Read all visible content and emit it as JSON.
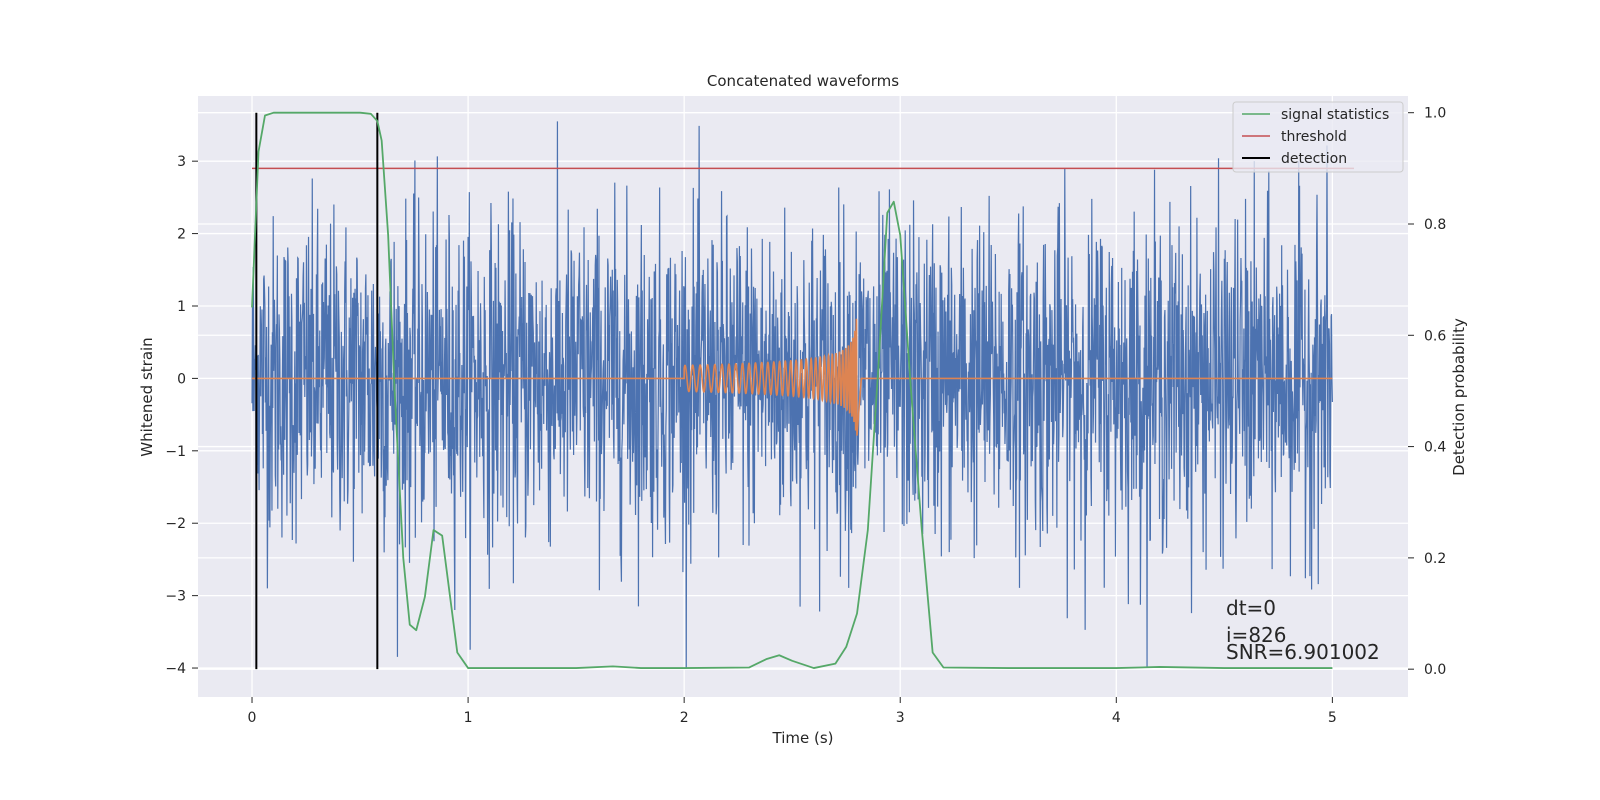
{
  "chart_data": {
    "type": "line",
    "title": "Concatenated waveforms",
    "xlabel": "Time (s)",
    "ylabel": "Whitened strain",
    "y2label": "Detection probability",
    "xlim": [
      -0.25,
      5.35
    ],
    "ylim": [
      -4.4,
      3.9
    ],
    "y2lim": [
      -0.05,
      1.03
    ],
    "xticks": [
      0,
      1,
      2,
      3,
      4,
      5
    ],
    "xtick_labels": [
      "0",
      "1",
      "2",
      "3",
      "4",
      "5"
    ],
    "yticks": [
      3,
      2,
      1,
      0,
      -1,
      -2,
      -3,
      -4
    ],
    "ytick_labels": [
      "3",
      "2",
      "1",
      "0",
      "−1",
      "−2",
      "−3",
      "−4"
    ],
    "y2ticks": [
      1.0,
      0.8,
      0.6,
      0.4,
      0.2,
      0.0
    ],
    "y2tick_labels": [
      "1.0",
      "0.8",
      "0.6",
      "0.4",
      "0.2",
      "0.0"
    ],
    "grid": true,
    "legend_position": "top-right",
    "legend": [
      {
        "label": "signal statistics",
        "color": "#55a868"
      },
      {
        "label": "threshold",
        "color": "#c44e52"
      },
      {
        "label": "detection",
        "color": "#000000"
      }
    ],
    "colors": {
      "strain": "#4c72b0",
      "waveform": "#dd8452",
      "signal_statistics": "#55a868",
      "threshold": "#c44e52",
      "detection": "#000000",
      "axes_background": "#eaeaf2"
    },
    "strain": {
      "x_range": [
        0,
        5
      ],
      "typical_amplitude": 1.3,
      "peak_max": 3.55,
      "peak_min": -4.0
    },
    "waveform": {
      "x_range": [
        2.0,
        2.8
      ],
      "start_amplitude": 0.18,
      "end_max": 1.05,
      "end_min": -0.78,
      "merger_time": 2.8
    },
    "signal_statistics": {
      "x": [
        0,
        0.03,
        0.06,
        0.1,
        0.2,
        0.4,
        0.5,
        0.55,
        0.58,
        0.6,
        0.63,
        0.66,
        0.7,
        0.73,
        0.76,
        0.8,
        0.84,
        0.88,
        0.92,
        0.95,
        1.0,
        1.2,
        1.5,
        1.67,
        1.8,
        2.0,
        2.3,
        2.38,
        2.44,
        2.5,
        2.6,
        2.7,
        2.75,
        2.8,
        2.85,
        2.9,
        2.94,
        2.97,
        3.0,
        3.05,
        3.1,
        3.15,
        3.2,
        3.5,
        4.0,
        4.2,
        4.5,
        5.0
      ],
      "values": [
        0.65,
        0.93,
        0.995,
        1.0,
        1.0,
        1.0,
        1.0,
        0.998,
        0.985,
        0.95,
        0.78,
        0.5,
        0.2,
        0.08,
        0.07,
        0.13,
        0.25,
        0.24,
        0.12,
        0.03,
        0.002,
        0.002,
        0.002,
        0.005,
        0.002,
        0.002,
        0.003,
        0.018,
        0.025,
        0.015,
        0.002,
        0.01,
        0.04,
        0.1,
        0.25,
        0.55,
        0.82,
        0.84,
        0.78,
        0.5,
        0.25,
        0.03,
        0.003,
        0.002,
        0.002,
        0.004,
        0.002,
        0.002
      ]
    },
    "threshold": {
      "x": [
        0,
        5.1
      ],
      "value": 0.9
    },
    "detections": [
      0.02,
      0.58
    ],
    "annotations": [
      "dt=0",
      "i=826",
      "SNR=6.901002"
    ]
  }
}
